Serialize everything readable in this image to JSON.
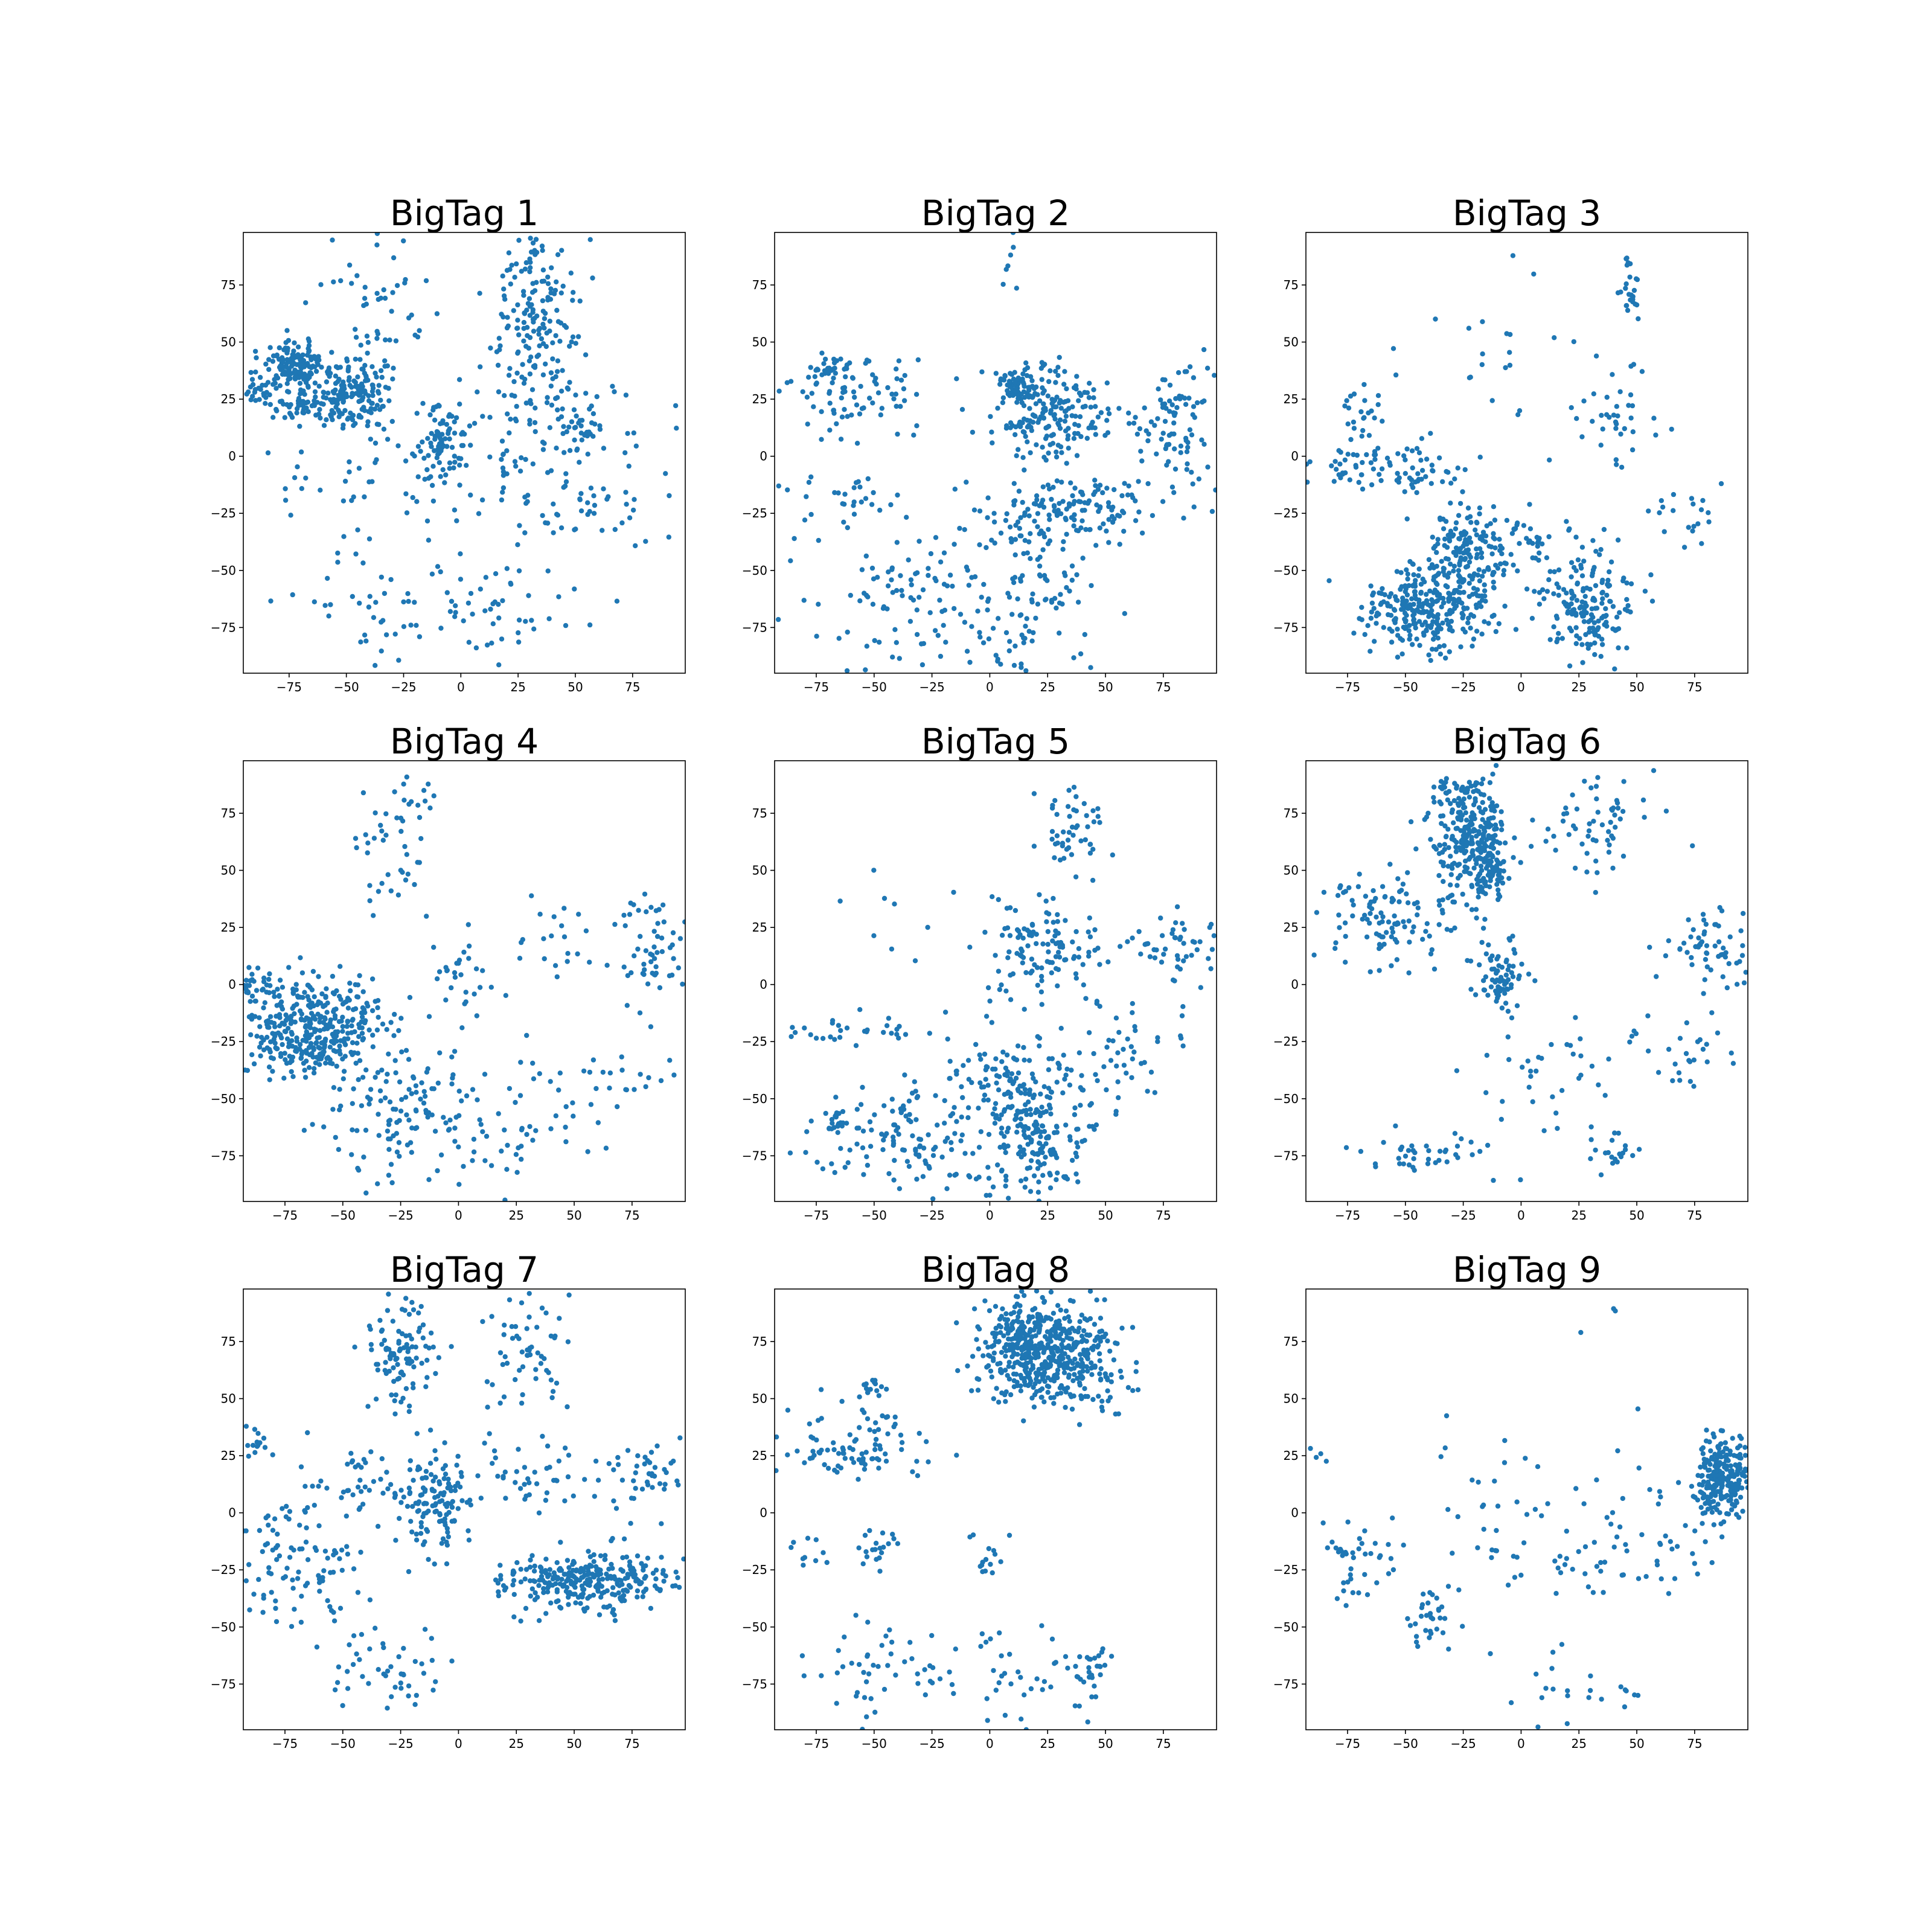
{
  "chart_data": [
    {
      "type": "scatter",
      "title": "BigTag 1",
      "xlim": [
        -95,
        98
      ],
      "ylim": [
        -95,
        98
      ],
      "xticks": [
        -75,
        -50,
        -25,
        0,
        25,
        50,
        75
      ],
      "yticks": [
        -75,
        -50,
        -25,
        0,
        25,
        50,
        75
      ],
      "color": "#1f77b4",
      "clusters": [
        {
          "cx": -72,
          "cy": 40,
          "sx": 7,
          "sy": 5,
          "n": 150
        },
        {
          "cx": -48,
          "cy": 27,
          "sx": 9,
          "sy": 8,
          "n": 170
        },
        {
          "cx": -88,
          "cy": 29,
          "sx": 4,
          "sy": 4,
          "n": 30
        },
        {
          "cx": -70,
          "cy": 22,
          "sx": 5,
          "sy": 3,
          "n": 40
        },
        {
          "cx": -8,
          "cy": 7,
          "sx": 5,
          "sy": 8,
          "n": 80
        },
        {
          "cx": 32,
          "cy": 65,
          "sx": 10,
          "sy": 17,
          "n": 140
        },
        {
          "cx": 35,
          "cy": 20,
          "sx": 15,
          "sy": 18,
          "n": 100
        },
        {
          "cx": -38,
          "cy": 65,
          "sx": 12,
          "sy": 15,
          "n": 50
        },
        {
          "cx": 52,
          "cy": 14,
          "sx": 5,
          "sy": 3,
          "n": 20
        },
        {
          "cx": 15,
          "cy": -65,
          "sx": 20,
          "sy": 12,
          "n": 50
        },
        {
          "cx": -40,
          "cy": -68,
          "sx": 18,
          "sy": 12,
          "n": 40
        },
        {
          "cx": -30,
          "cy": -10,
          "sx": 30,
          "sy": 12,
          "n": 50
        },
        {
          "cx": 45,
          "cy": -22,
          "sx": 15,
          "sy": 10,
          "n": 40
        },
        {
          "cx": 75,
          "cy": -5,
          "sx": 15,
          "sy": 18,
          "n": 25
        }
      ]
    },
    {
      "type": "scatter",
      "title": "BigTag 2",
      "xlim": [
        -93,
        98
      ],
      "ylim": [
        -95,
        98
      ],
      "xticks": [
        -75,
        -50,
        -25,
        0,
        25,
        50,
        75
      ],
      "yticks": [
        -75,
        -50,
        -25,
        0,
        25,
        50,
        75
      ],
      "color": "#1f77b4",
      "clusters": [
        {
          "cx": 28,
          "cy": 20,
          "sx": 15,
          "sy": 10,
          "n": 200
        },
        {
          "cx": 12,
          "cy": 30,
          "sx": 4,
          "sy": 4,
          "n": 50
        },
        {
          "cx": 35,
          "cy": -25,
          "sx": 22,
          "sy": 9,
          "n": 150
        },
        {
          "cx": 82,
          "cy": 15,
          "sx": 10,
          "sy": 12,
          "n": 90
        },
        {
          "cx": -60,
          "cy": 25,
          "sx": 15,
          "sy": 10,
          "n": 80
        },
        {
          "cx": -30,
          "cy": -65,
          "sx": 25,
          "sy": 15,
          "n": 120
        },
        {
          "cx": 20,
          "cy": -60,
          "sx": 15,
          "sy": 20,
          "n": 80
        },
        {
          "cx": -60,
          "cy": -20,
          "sx": 20,
          "sy": 5,
          "n": 30
        },
        {
          "cx": 10,
          "cy": 80,
          "sx": 4,
          "sy": 10,
          "n": 8
        },
        {
          "cx": -70,
          "cy": 40,
          "sx": 5,
          "sy": 3,
          "n": 25
        }
      ]
    },
    {
      "type": "scatter",
      "title": "BigTag 3",
      "xlim": [
        -93,
        98
      ],
      "ylim": [
        -95,
        98
      ],
      "xticks": [
        -75,
        -50,
        -25,
        0,
        25,
        50,
        75
      ],
      "yticks": [
        -75,
        -50,
        -25,
        0,
        25,
        50,
        75
      ],
      "color": "#1f77b4",
      "clusters": [
        {
          "cx": -42,
          "cy": -68,
          "sx": 12,
          "sy": 10,
          "n": 250
        },
        {
          "cx": -25,
          "cy": -45,
          "sx": 9,
          "sy": 12,
          "n": 180
        },
        {
          "cx": 28,
          "cy": -65,
          "sx": 10,
          "sy": 13,
          "n": 180
        },
        {
          "cx": -60,
          "cy": -5,
          "sx": 18,
          "sy": 6,
          "n": 90
        },
        {
          "cx": 48,
          "cy": 75,
          "sx": 3,
          "sy": 6,
          "n": 25
        },
        {
          "cx": 40,
          "cy": 15,
          "sx": 10,
          "sy": 12,
          "n": 40
        },
        {
          "cx": 70,
          "cy": -25,
          "sx": 10,
          "sy": 8,
          "n": 20
        },
        {
          "cx": 0,
          "cy": -40,
          "sx": 8,
          "sy": 8,
          "n": 40
        },
        {
          "cx": -70,
          "cy": 20,
          "sx": 5,
          "sy": 4,
          "n": 20
        },
        {
          "cx": -20,
          "cy": 50,
          "sx": 20,
          "sy": 20,
          "n": 20
        }
      ]
    },
    {
      "type": "scatter",
      "title": "BigTag 4",
      "xlim": [
        -93,
        98
      ],
      "ylim": [
        -95,
        98
      ],
      "xticks": [
        -75,
        -50,
        -25,
        0,
        25,
        50,
        75
      ],
      "yticks": [
        -75,
        -50,
        -25,
        0,
        25,
        50,
        75
      ],
      "color": "#1f77b4",
      "clusters": [
        {
          "cx": -62,
          "cy": -15,
          "sx": 15,
          "sy": 10,
          "n": 300
        },
        {
          "cx": -65,
          "cy": -30,
          "sx": 10,
          "sy": 5,
          "n": 80
        },
        {
          "cx": -88,
          "cy": 0,
          "sx": 4,
          "sy": 3,
          "n": 30
        },
        {
          "cx": -25,
          "cy": -55,
          "sx": 15,
          "sy": 15,
          "n": 120
        },
        {
          "cx": 20,
          "cy": -60,
          "sx": 20,
          "sy": 15,
          "n": 60
        },
        {
          "cx": 85,
          "cy": 15,
          "sx": 8,
          "sy": 12,
          "n": 60
        },
        {
          "cx": -25,
          "cy": 65,
          "sx": 10,
          "sy": 15,
          "n": 50
        },
        {
          "cx": 40,
          "cy": 20,
          "sx": 10,
          "sy": 8,
          "n": 20
        },
        {
          "cx": 0,
          "cy": 5,
          "sx": 10,
          "sy": 10,
          "n": 30
        },
        {
          "cx": 65,
          "cy": -40,
          "sx": 15,
          "sy": 5,
          "n": 20
        }
      ]
    },
    {
      "type": "scatter",
      "title": "BigTag 5",
      "xlim": [
        -93,
        98
      ],
      "ylim": [
        -95,
        98
      ],
      "xticks": [
        -75,
        -50,
        -25,
        0,
        25,
        50,
        75
      ],
      "yticks": [
        -75,
        -50,
        -25,
        0,
        25,
        50,
        75
      ],
      "color": "#1f77b4",
      "clusters": [
        {
          "cx": 20,
          "cy": -60,
          "sx": 12,
          "sy": 18,
          "n": 250
        },
        {
          "cx": -35,
          "cy": -65,
          "sx": 20,
          "sy": 12,
          "n": 130
        },
        {
          "cx": 25,
          "cy": 15,
          "sx": 13,
          "sy": 12,
          "n": 120
        },
        {
          "cx": 35,
          "cy": 65,
          "sx": 8,
          "sy": 10,
          "n": 50
        },
        {
          "cx": 80,
          "cy": 15,
          "sx": 10,
          "sy": 10,
          "n": 50
        },
        {
          "cx": 60,
          "cy": -30,
          "sx": 10,
          "sy": 10,
          "n": 40
        },
        {
          "cx": -60,
          "cy": -20,
          "sx": 18,
          "sy": 3,
          "n": 30
        },
        {
          "cx": -68,
          "cy": -60,
          "sx": 3,
          "sy": 3,
          "n": 20
        },
        {
          "cx": -5,
          "cy": -40,
          "sx": 10,
          "sy": 10,
          "n": 40
        },
        {
          "cx": -35,
          "cy": 30,
          "sx": 15,
          "sy": 20,
          "n": 10
        }
      ]
    },
    {
      "type": "scatter",
      "title": "BigTag 6",
      "xlim": [
        -93,
        98
      ],
      "ylim": [
        -95,
        98
      ],
      "xticks": [
        -75,
        -50,
        -25,
        0,
        25,
        50,
        75
      ],
      "yticks": [
        -75,
        -50,
        -25,
        0,
        25,
        50,
        75
      ],
      "color": "#1f77b4",
      "clusters": [
        {
          "cx": -22,
          "cy": 65,
          "sx": 8,
          "sy": 12,
          "n": 230
        },
        {
          "cx": -15,
          "cy": 50,
          "sx": 5,
          "sy": 8,
          "n": 80
        },
        {
          "cx": -28,
          "cy": 85,
          "sx": 4,
          "sy": 3,
          "n": 30
        },
        {
          "cx": -55,
          "cy": 30,
          "sx": 18,
          "sy": 10,
          "n": 120
        },
        {
          "cx": -10,
          "cy": 5,
          "sx": 6,
          "sy": 10,
          "n": 70
        },
        {
          "cx": 35,
          "cy": 70,
          "sx": 12,
          "sy": 12,
          "n": 60
        },
        {
          "cx": 82,
          "cy": 15,
          "sx": 10,
          "sy": 12,
          "n": 60
        },
        {
          "cx": 10,
          "cy": -40,
          "sx": 15,
          "sy": 15,
          "n": 40
        },
        {
          "cx": -40,
          "cy": -75,
          "sx": 15,
          "sy": 5,
          "n": 40
        },
        {
          "cx": 40,
          "cy": -75,
          "sx": 5,
          "sy": 5,
          "n": 20
        },
        {
          "cx": 70,
          "cy": -30,
          "sx": 12,
          "sy": 10,
          "n": 30
        }
      ]
    },
    {
      "type": "scatter",
      "title": "BigTag 7",
      "xlim": [
        -93,
        98
      ],
      "ylim": [
        -95,
        98
      ],
      "xticks": [
        -75,
        -50,
        -25,
        0,
        25,
        50,
        75
      ],
      "yticks": [
        -75,
        -50,
        -25,
        0,
        25,
        50,
        75
      ],
      "color": "#1f77b4",
      "clusters": [
        {
          "cx": 55,
          "cy": -30,
          "sx": 18,
          "sy": 6,
          "n": 300
        },
        {
          "cx": -10,
          "cy": 5,
          "sx": 8,
          "sy": 12,
          "n": 130
        },
        {
          "cx": -25,
          "cy": 70,
          "sx": 8,
          "sy": 12,
          "n": 100
        },
        {
          "cx": 30,
          "cy": 70,
          "sx": 10,
          "sy": 15,
          "n": 60
        },
        {
          "cx": -70,
          "cy": -20,
          "sx": 12,
          "sy": 15,
          "n": 100
        },
        {
          "cx": 80,
          "cy": 15,
          "sx": 12,
          "sy": 10,
          "n": 50
        },
        {
          "cx": 30,
          "cy": 15,
          "sx": 15,
          "sy": 8,
          "n": 40
        },
        {
          "cx": -30,
          "cy": -75,
          "sx": 15,
          "sy": 10,
          "n": 50
        },
        {
          "cx": -88,
          "cy": 30,
          "sx": 3,
          "sy": 3,
          "n": 15
        },
        {
          "cx": -40,
          "cy": 15,
          "sx": 12,
          "sy": 10,
          "n": 40
        }
      ]
    },
    {
      "type": "scatter",
      "title": "BigTag 8",
      "xlim": [
        -93,
        98
      ],
      "ylim": [
        -95,
        98
      ],
      "xticks": [
        -75,
        -50,
        -25,
        0,
        25,
        50,
        75
      ],
      "yticks": [
        -75,
        -50,
        -25,
        0,
        25,
        50,
        75
      ],
      "color": "#1f77b4",
      "clusters": [
        {
          "cx": 25,
          "cy": 70,
          "sx": 15,
          "sy": 12,
          "n": 500
        },
        {
          "cx": 10,
          "cy": 80,
          "sx": 4,
          "sy": 6,
          "n": 60
        },
        {
          "cx": -60,
          "cy": 30,
          "sx": 18,
          "sy": 8,
          "n": 90
        },
        {
          "cx": -50,
          "cy": 55,
          "sx": 3,
          "sy": 3,
          "n": 15
        },
        {
          "cx": 15,
          "cy": -70,
          "sx": 15,
          "sy": 10,
          "n": 40
        },
        {
          "cx": -45,
          "cy": -70,
          "sx": 15,
          "sy": 10,
          "n": 50
        },
        {
          "cx": 45,
          "cy": -70,
          "sx": 4,
          "sy": 10,
          "n": 25
        },
        {
          "cx": -50,
          "cy": -15,
          "sx": 5,
          "sy": 5,
          "n": 20
        },
        {
          "cx": 0,
          "cy": -20,
          "sx": 5,
          "sy": 5,
          "n": 15
        },
        {
          "cx": -80,
          "cy": -15,
          "sx": 5,
          "sy": 5,
          "n": 10
        }
      ]
    },
    {
      "type": "scatter",
      "title": "BigTag 9",
      "xlim": [
        -93,
        98
      ],
      "ylim": [
        -95,
        98
      ],
      "xticks": [
        -75,
        -50,
        -25,
        0,
        25,
        50,
        75
      ],
      "yticks": [
        -75,
        -50,
        -25,
        0,
        25,
        50,
        75
      ],
      "color": "#1f77b4",
      "clusters": [
        {
          "cx": 87,
          "cy": 15,
          "sx": 6,
          "sy": 10,
          "n": 250
        },
        {
          "cx": -70,
          "cy": -20,
          "sx": 10,
          "sy": 10,
          "n": 40
        },
        {
          "cx": -40,
          "cy": -45,
          "sx": 6,
          "sy": 10,
          "n": 30
        },
        {
          "cx": 0,
          "cy": -10,
          "sx": 25,
          "sy": 25,
          "n": 60
        },
        {
          "cx": 50,
          "cy": -15,
          "sx": 15,
          "sy": 15,
          "n": 40
        },
        {
          "cx": 25,
          "cy": -80,
          "sx": 15,
          "sy": 8,
          "n": 20
        },
        {
          "cx": -85,
          "cy": 25,
          "sx": 4,
          "sy": 4,
          "n": 4
        },
        {
          "cx": 35,
          "cy": 85,
          "sx": 6,
          "sy": 6,
          "n": 3
        }
      ]
    }
  ]
}
